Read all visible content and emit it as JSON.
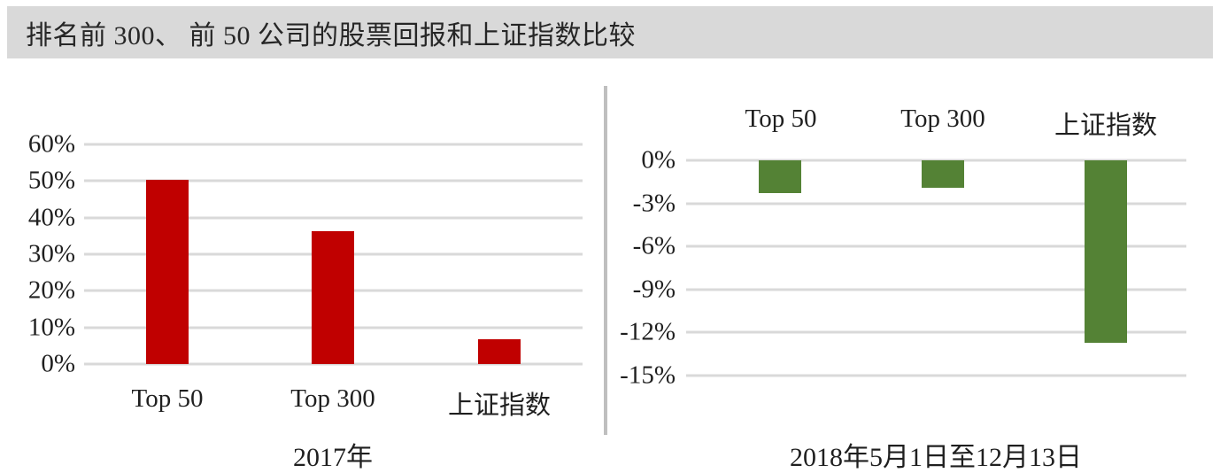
{
  "header": {
    "title": "排名前 300、 前 50 公司的股票回报和上证指数比较"
  },
  "colors": {
    "left_bar": "#C00000",
    "right_bar": "#548235",
    "gridline": "#D9D9D9",
    "title_bar_bg": "#D9D9D9",
    "divider": "#BFBFBF"
  },
  "chart_data": [
    {
      "type": "bar",
      "title": "",
      "axis_title": "2017年",
      "categories": [
        "Top 50",
        "Top 300",
        "上证指数"
      ],
      "values": [
        50.3,
        36.3,
        6.8
      ],
      "unit": "%",
      "ticks": [
        "60%",
        "50%",
        "40%",
        "30%",
        "20%",
        "10%",
        "0%"
      ],
      "ylim": [
        0,
        60
      ],
      "grid": true,
      "legend": "none",
      "bar_color": "#C00000",
      "category_label_position": "below-axis"
    },
    {
      "type": "bar",
      "title": "",
      "axis_title": "2018年5月1日至12月13日",
      "categories": [
        "Top 50",
        "Top 300",
        "上证指数"
      ],
      "values": [
        -2.3,
        -1.9,
        -12.7
      ],
      "unit": "%",
      "ticks": [
        "0%",
        "-3%",
        "-6%",
        "-9%",
        "-12%",
        "-15%"
      ],
      "ylim": [
        -15,
        0
      ],
      "grid": true,
      "legend": "none",
      "bar_color": "#548235",
      "category_label_position": "above-chart"
    }
  ]
}
